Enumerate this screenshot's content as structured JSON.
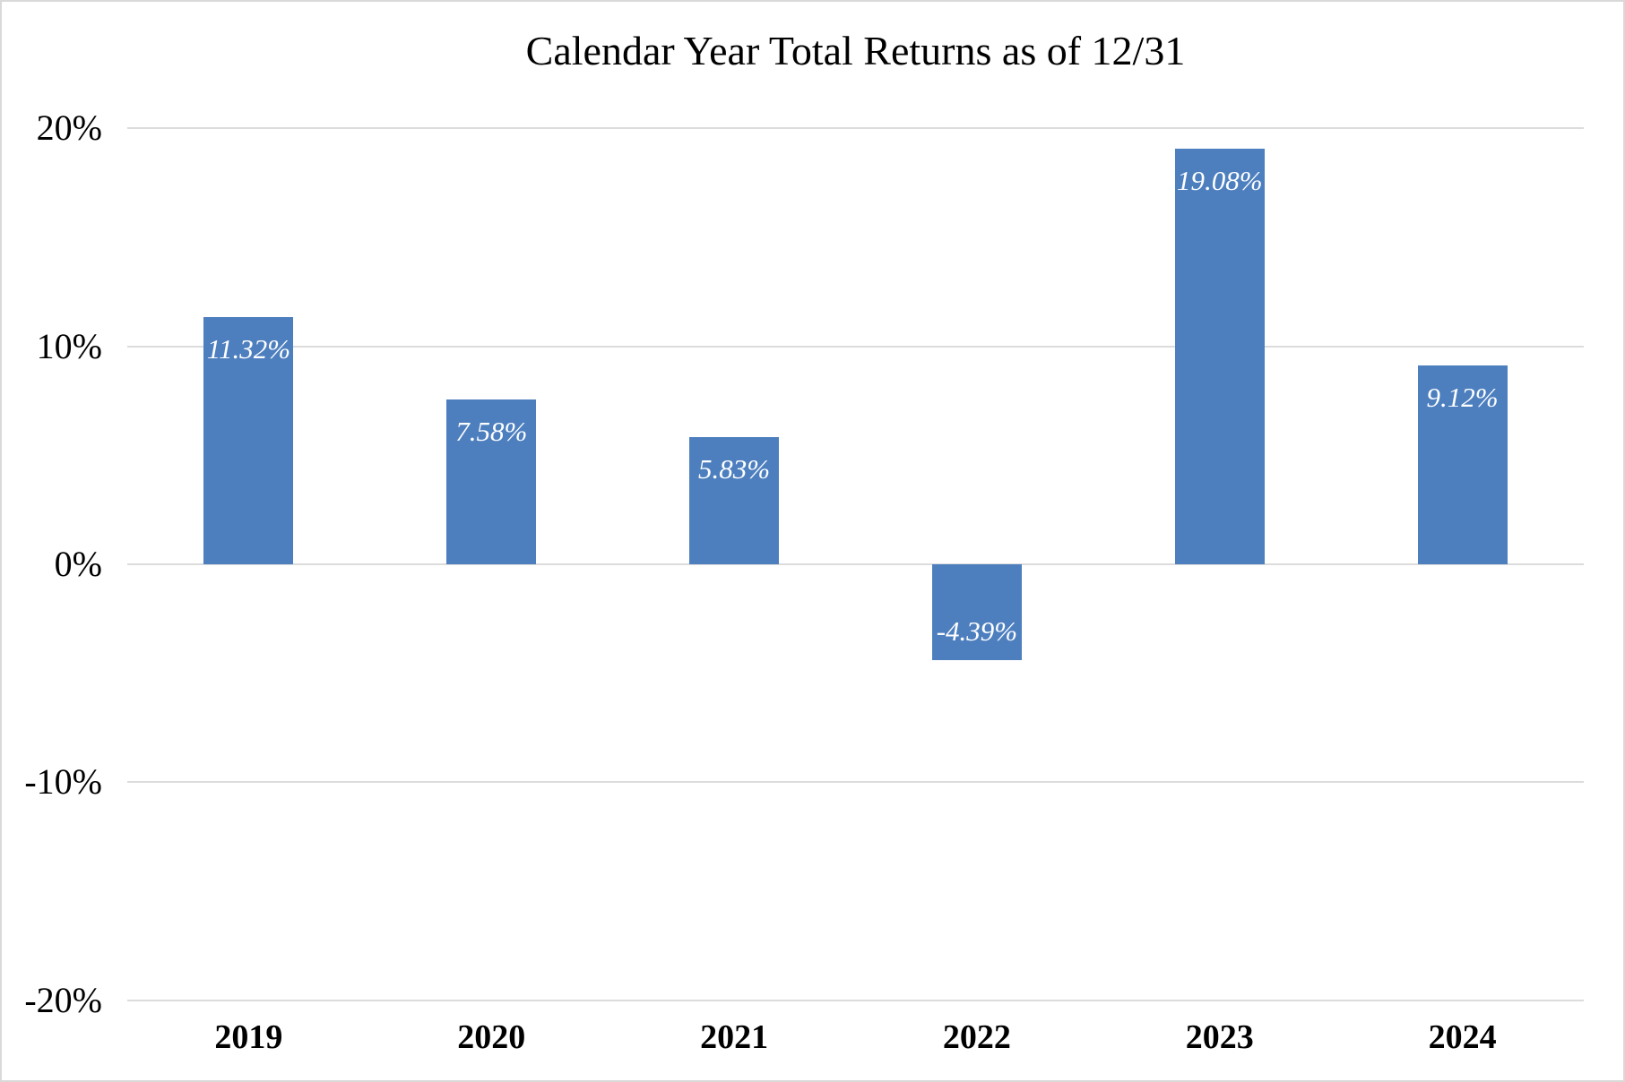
{
  "chart_data": {
    "type": "bar",
    "title": "Calendar Year Total Returns as of 12/31",
    "categories": [
      "2019",
      "2020",
      "2021",
      "2022",
      "2023",
      "2024"
    ],
    "values": [
      11.32,
      7.58,
      5.83,
      -4.39,
      19.08,
      9.12
    ],
    "value_labels": [
      "11.32%",
      "7.58%",
      "5.83%",
      "-4.39%",
      "19.08%",
      "9.12%"
    ],
    "value_label_position": "inside-end",
    "xlabel": "",
    "ylabel": "",
    "ylim": [
      -20,
      20
    ],
    "y_ticks": [
      {
        "value": 20,
        "label": "20%"
      },
      {
        "value": 10,
        "label": "10%"
      },
      {
        "value": 0,
        "label": "0%"
      },
      {
        "value": -10,
        "label": "-10%"
      },
      {
        "value": -20,
        "label": "-20%"
      }
    ],
    "grid": "horizontal",
    "legend": "none",
    "colors": {
      "bar_fill": "#4D7FBF",
      "data_label_text": "#FFFFFF",
      "gridline": "#DCDCDC",
      "axis_text": "#000000",
      "background": "#FFFFFF",
      "frame_border": "#D9D9D9"
    }
  }
}
